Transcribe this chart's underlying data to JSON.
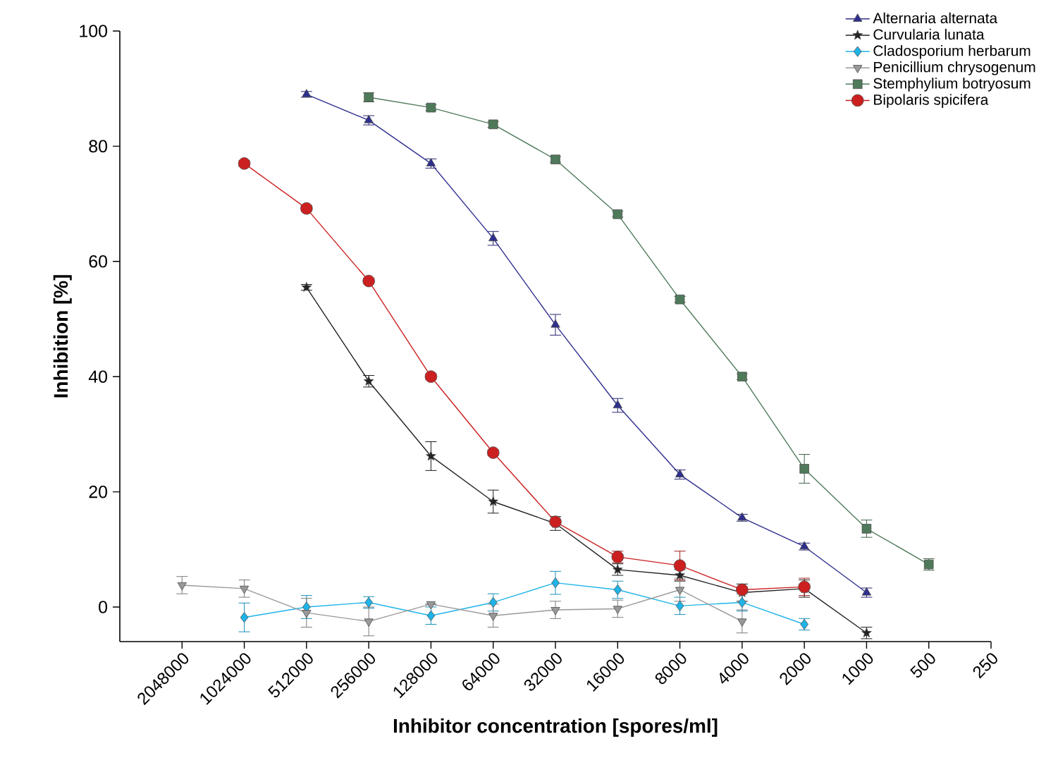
{
  "chart_data": {
    "type": "line",
    "xlabel": "Inhibitor concentration [spores/ml]",
    "ylabel": "Inhibition [%]",
    "categories": [
      "2048000",
      "1024000",
      "512000",
      "256000",
      "128000",
      "64000",
      "32000",
      "16000",
      "8000",
      "4000",
      "2000",
      "1000",
      "500",
      "250"
    ],
    "ylim": [
      -6,
      100
    ],
    "yticks": [
      0,
      20,
      40,
      60,
      80,
      100
    ],
    "legend": "top right",
    "grid": false,
    "series": [
      {
        "name": "Alternaria alternata",
        "color": "#2e2e8f",
        "marker": "triangle",
        "values": [
          null,
          null,
          89,
          84.5,
          77,
          64,
          49,
          35,
          23,
          15.5,
          10.5,
          2.5,
          null,
          null
        ],
        "errors": [
          null,
          null,
          0.5,
          0.8,
          0.8,
          1.2,
          1.8,
          1.2,
          0.8,
          0.6,
          0.6,
          0.8,
          null,
          null
        ]
      },
      {
        "name": "Curvularia lunata",
        "color": "#222222",
        "marker": "star",
        "values": [
          null,
          null,
          55.5,
          39.2,
          26.2,
          18.3,
          14.5,
          6.5,
          5.5,
          2.5,
          3.2,
          -4.5,
          null,
          null
        ],
        "errors": [
          null,
          null,
          0.5,
          1,
          2.5,
          2,
          1.2,
          1,
          1,
          1.5,
          1.5,
          1,
          null,
          null
        ]
      },
      {
        "name": "Cladosporium herbarum",
        "color": "#1eb4e8",
        "marker": "diamond",
        "values": [
          null,
          -1.8,
          0,
          0.8,
          -1.5,
          0.8,
          4.2,
          3,
          0.2,
          0.8,
          -3,
          null,
          null,
          null
        ],
        "errors": [
          null,
          2.5,
          2,
          1,
          1.5,
          1.5,
          2,
          1.5,
          1.5,
          1.5,
          1,
          null,
          null,
          null
        ]
      },
      {
        "name": "Penicillium chrysogenum",
        "color": "#999999",
        "marker": "triangle-down",
        "values": [
          3.8,
          3.2,
          -1,
          -2.5,
          0.5,
          -1.5,
          -0.5,
          -0.3,
          3,
          -2.5,
          null,
          null,
          null,
          null
        ],
        "errors": [
          1.5,
          1.5,
          2.5,
          2.5,
          null,
          2,
          1.5,
          1.5,
          2,
          2,
          null,
          null,
          null,
          null
        ]
      },
      {
        "name": "Stemphylium botryosum",
        "color": "#4f7a5a",
        "marker": "square",
        "values": [
          null,
          null,
          null,
          88.5,
          86.7,
          83.8,
          77.7,
          68.2,
          53.4,
          40,
          24,
          13.6,
          7.4,
          null
        ],
        "errors": [
          null,
          null,
          null,
          0.8,
          0.5,
          0.5,
          0.5,
          0.5,
          0.5,
          0.5,
          2.5,
          1.5,
          1,
          null
        ]
      },
      {
        "name": "Bipolaris spicifera",
        "color": "#cc1f1f",
        "marker": "circle",
        "values": [
          null,
          77,
          69.2,
          56.6,
          40,
          26.8,
          14.8,
          8.7,
          7.2,
          3,
          3.5,
          null,
          null,
          null
        ],
        "errors": [
          null,
          0.5,
          0.5,
          0.5,
          0.5,
          0.5,
          null,
          1,
          2.5,
          null,
          1.5,
          null,
          null,
          null
        ]
      }
    ]
  }
}
